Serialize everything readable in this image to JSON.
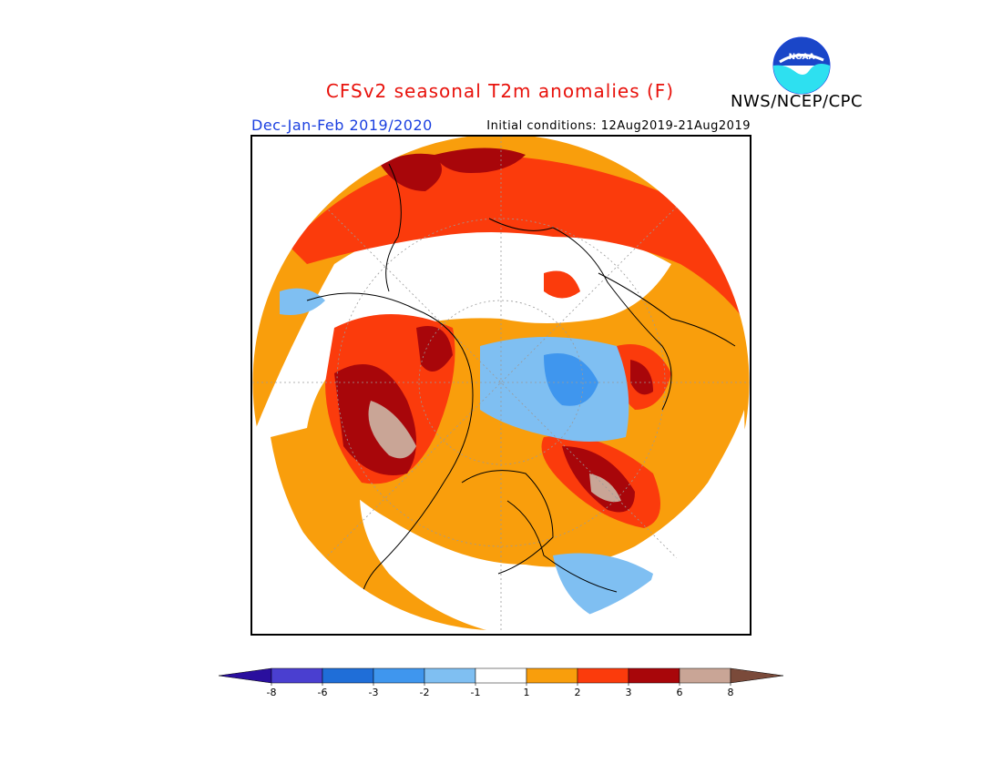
{
  "title": "CFSv2 seasonal T2m anomalies (F)",
  "season": "Dec-Jan-Feb 2019/2020",
  "initial_conditions": "Initial conditions: 12Aug2019-21Aug2019",
  "agency": "NWS/NCEP/CPC",
  "logo_text": "NOAA",
  "colors": {
    "title": "#e8120c",
    "season": "#1a3fe0",
    "frame": "#000000"
  },
  "colorbar": {
    "ticks": [
      "-8",
      "-6",
      "-3",
      "-2",
      "-1",
      "1",
      "2",
      "3",
      "6",
      "8"
    ],
    "colors": [
      "#2a0f9e",
      "#4a3fd0",
      "#1f6ed8",
      "#3f96ee",
      "#7fbff2",
      "#ffffff",
      "#f99e0c",
      "#fb3b0c",
      "#a8060a",
      "#c9a596",
      "#7a4a3a"
    ]
  },
  "map_colors": {
    "plus_1_2": "#f99e0c",
    "plus_2_3": "#fb3b0c",
    "plus_3_6": "#a8060a",
    "plus_6_8": "#c9a596",
    "minus_1_2": "#7fbff2",
    "minus_2_3": "#3f96ee",
    "land_outline": "#000000",
    "grid": "#9a9a9a"
  }
}
